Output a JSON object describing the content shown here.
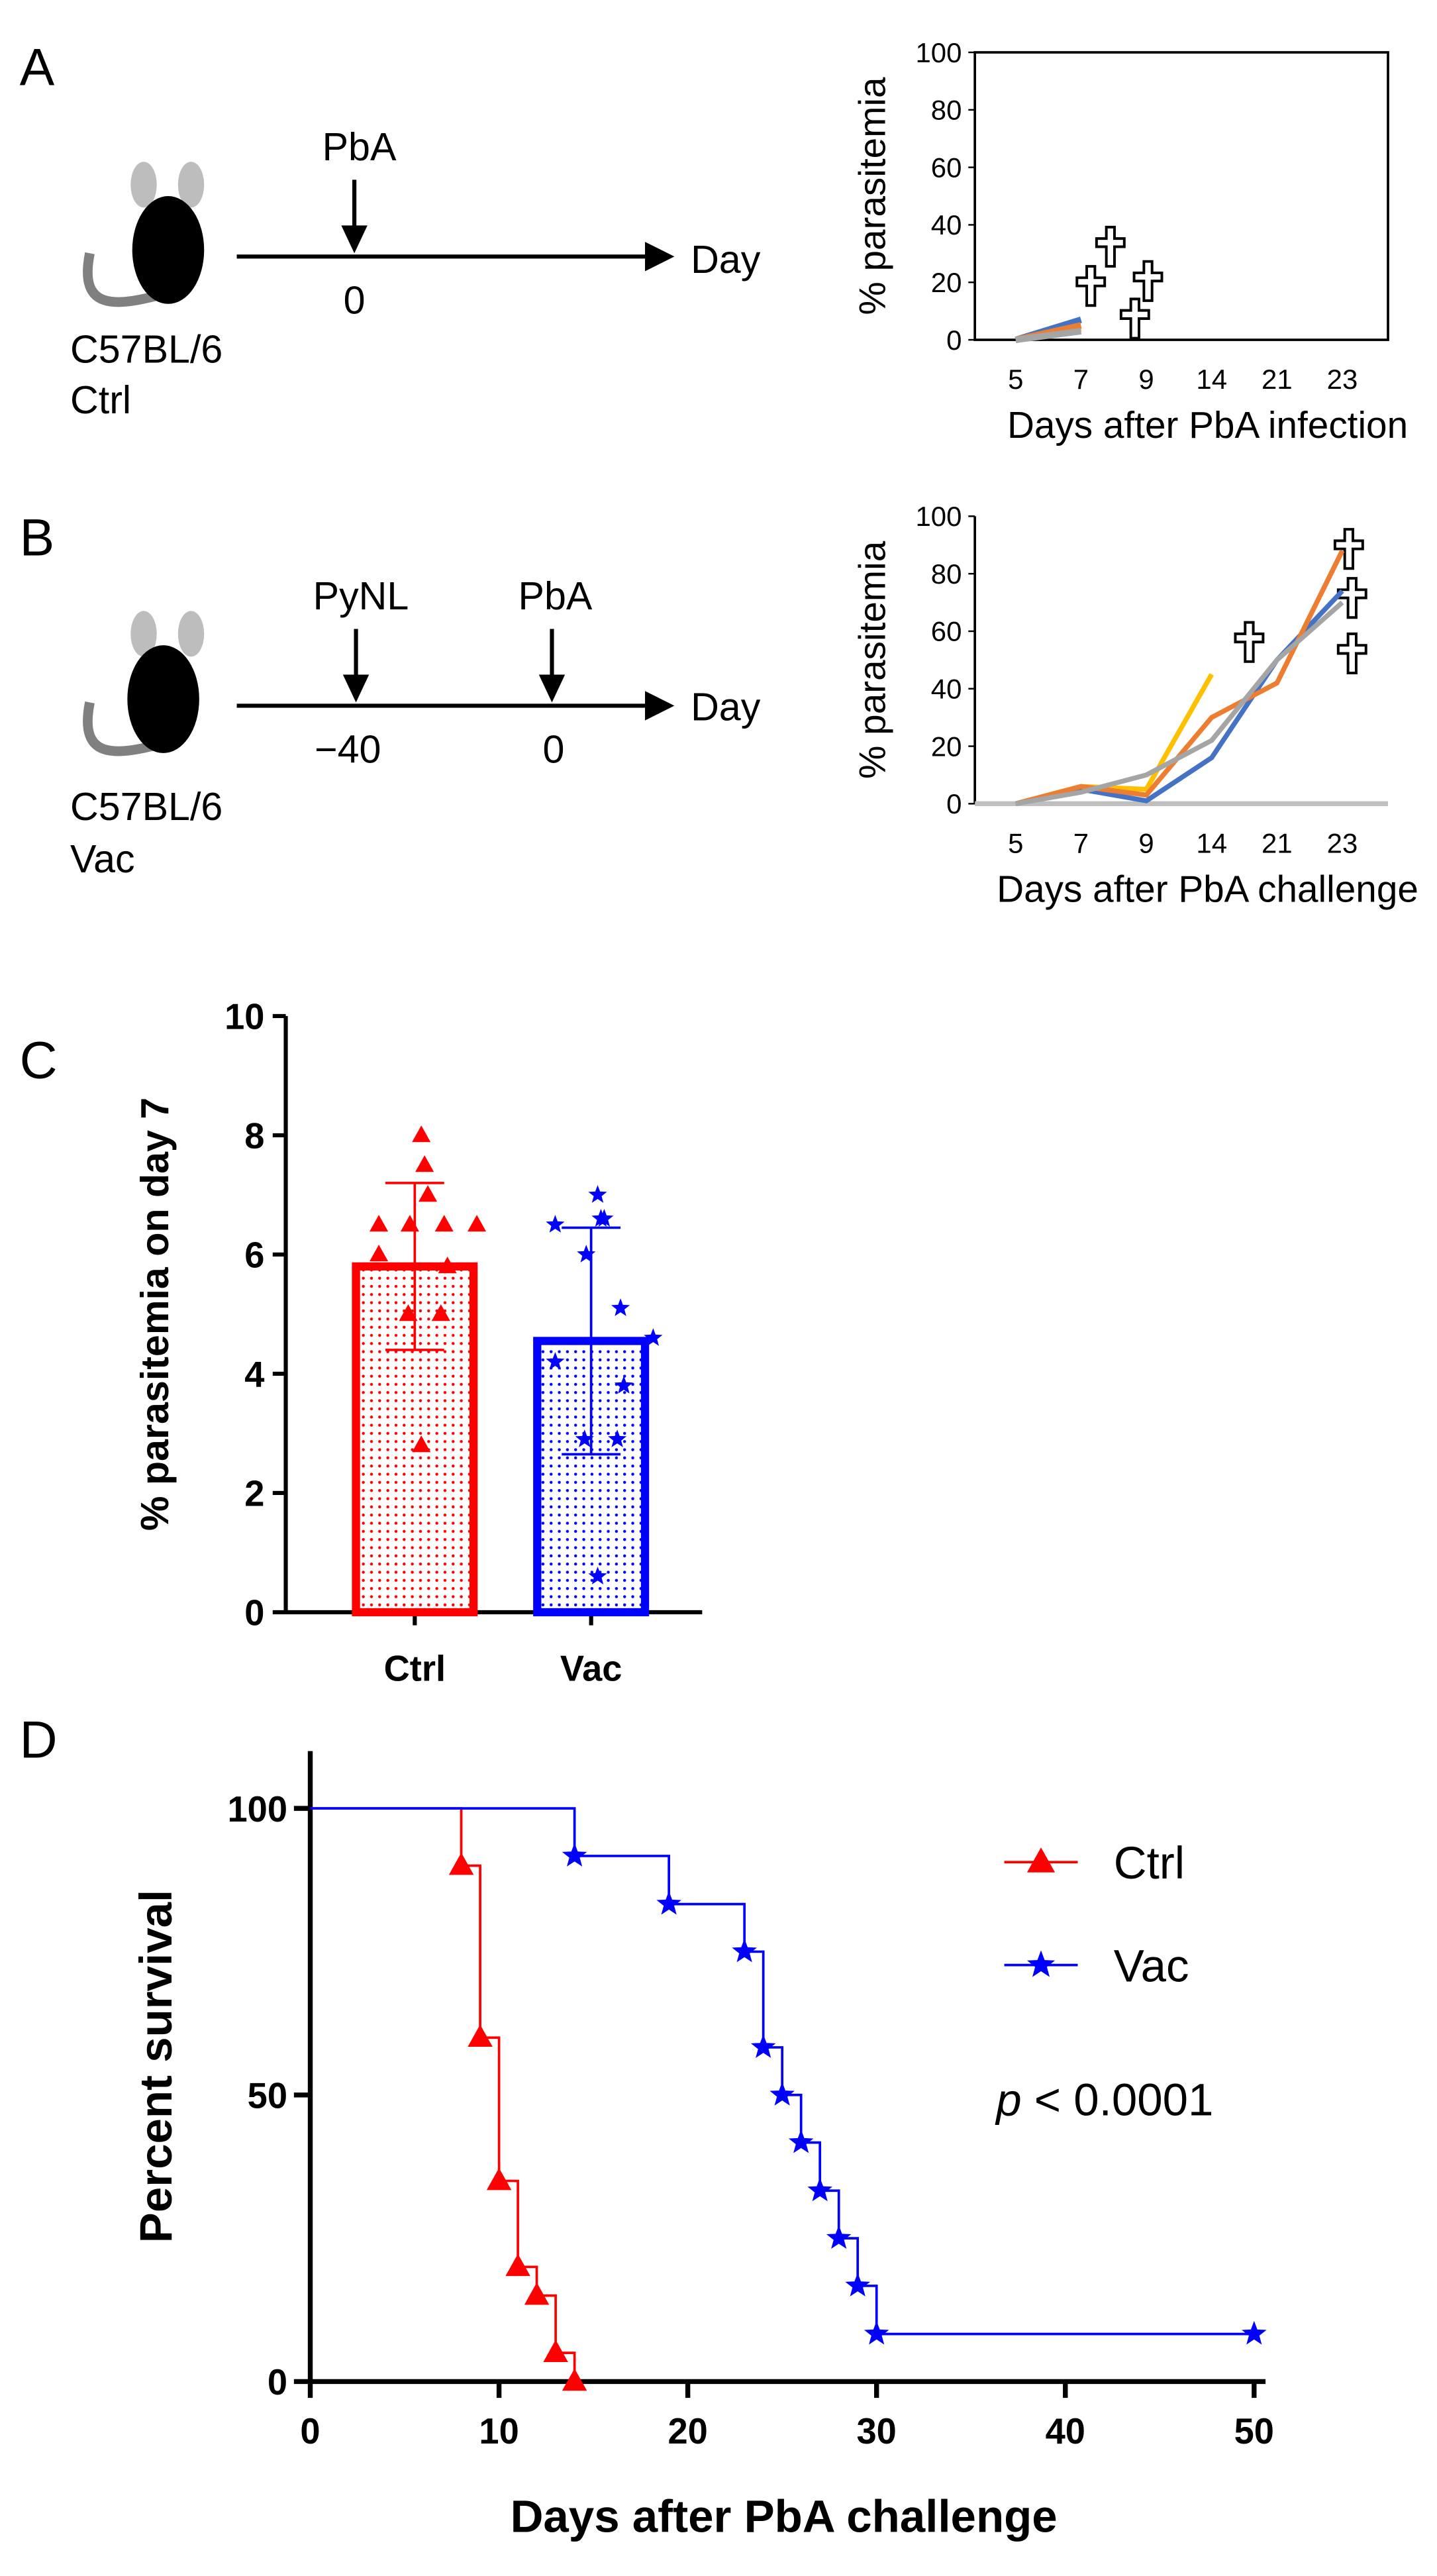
{
  "panels": {
    "a": "A",
    "b": "B",
    "c": "C",
    "d": "D"
  },
  "schematic_a": {
    "challenge": "PbA",
    "challenge_day": "0",
    "axis": "Day",
    "strain": "C57BL/6",
    "group": "Ctrl"
  },
  "schematic_b": {
    "vaccine": "PyNL",
    "vaccine_day": "−40",
    "challenge": "PbA",
    "challenge_day": "0",
    "axis": "Day",
    "strain": "C57BL/6",
    "group": "Vac"
  },
  "chart_data": [
    {
      "type": "line",
      "xlabel": "Days after PbA infection",
      "ylabel": "% parasitemia",
      "categories": [
        "5",
        "7",
        "9",
        "14",
        "21",
        "23"
      ],
      "ylim": [
        0,
        100
      ],
      "yticks": [
        0,
        20,
        40,
        60,
        80,
        100
      ],
      "frame": true,
      "series": [
        {
          "color": "#4472c4",
          "values": [
            0,
            7,
            null,
            null,
            null,
            null
          ]
        },
        {
          "color": "#ffc000",
          "values": [
            0,
            4,
            null,
            null,
            null,
            null
          ]
        },
        {
          "color": "#ed7d31",
          "values": [
            0,
            5,
            null,
            null,
            null,
            null
          ]
        },
        {
          "color": "#a5a5a5",
          "values": [
            0,
            3,
            null,
            null,
            null,
            null
          ]
        }
      ]
    },
    {
      "type": "line",
      "xlabel": "Days after PbA challenge",
      "ylabel": "% parasitemia",
      "categories": [
        "5",
        "7",
        "9",
        "14",
        "21",
        "23"
      ],
      "ylim": [
        0,
        100
      ],
      "yticks": [
        0,
        20,
        40,
        60,
        80,
        100
      ],
      "frame": false,
      "series": [
        {
          "color": "#ffc000",
          "values": [
            0,
            6,
            5,
            45,
            null,
            null
          ]
        },
        {
          "color": "#4472c4",
          "values": [
            0,
            5,
            1,
            16,
            50,
            74
          ]
        },
        {
          "color": "#ed7d31",
          "values": [
            0,
            6,
            3,
            30,
            42,
            88
          ]
        },
        {
          "color": "#a5a5a5",
          "values": [
            0,
            4,
            10,
            22,
            50,
            70
          ]
        }
      ]
    },
    {
      "type": "bar",
      "ylabel": "% parasitemia on day 7",
      "categories": [
        "Ctrl",
        "Vac"
      ],
      "values": [
        5.8,
        4.55
      ],
      "errors": [
        1.4,
        1.9
      ],
      "colors": [
        "#ff0000",
        "#0000ff"
      ],
      "points": [
        [
          8.0,
          7.5,
          7.0,
          6.5,
          6.5,
          6.5,
          6.5,
          6.0,
          5.8,
          5.0,
          5.0,
          2.8
        ],
        [
          7.0,
          6.6,
          6.6,
          6.5,
          6.0,
          5.1,
          4.6,
          4.2,
          3.8,
          2.9,
          2.9,
          0.6
        ]
      ],
      "ylim": [
        0,
        10
      ],
      "yticks": [
        0,
        2,
        4,
        6,
        8,
        10
      ]
    },
    {
      "type": "step",
      "xlabel": "Days after PbA challenge",
      "ylabel": "Percent survival",
      "xlim": [
        0,
        50
      ],
      "xticks": [
        0,
        10,
        20,
        30,
        40,
        50
      ],
      "ylim": [
        0,
        110
      ],
      "yticks": [
        0,
        50,
        100
      ],
      "annotation": {
        "italic": "p",
        "text": "< 0.0001"
      },
      "series": [
        {
          "name": "Ctrl",
          "color": "#ff0000",
          "marker": "triangle",
          "x": [
            0,
            8,
            9,
            10,
            11,
            12,
            13,
            14
          ],
          "values": [
            100,
            90,
            60,
            35,
            20,
            15,
            5,
            0
          ]
        },
        {
          "name": "Vac",
          "color": "#0000ff",
          "marker": "star",
          "x": [
            0,
            14,
            19,
            23,
            24,
            25,
            26,
            27,
            28,
            29,
            30,
            50
          ],
          "values": [
            100,
            91.7,
            83.3,
            75,
            58.3,
            50,
            41.7,
            33.3,
            25,
            16.7,
            8.3,
            8.3
          ]
        }
      ]
    }
  ]
}
